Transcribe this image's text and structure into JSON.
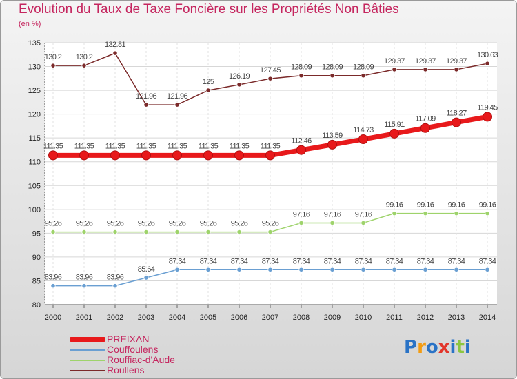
{
  "title": "Evolution du Taux de Taxe Foncière sur les Propriétés Non Bâties",
  "subtitle": "(en %)",
  "brand": {
    "text": "Proxiti",
    "letters": [
      "P",
      "r",
      "o",
      "x",
      "i",
      "t",
      "i"
    ],
    "colors": [
      "#2a73c6",
      "#f39c12",
      "#2a73c6",
      "#e2362b",
      "#2a73c6",
      "#8cc63f",
      "#2a73c6"
    ]
  },
  "chart_data": {
    "type": "line",
    "title": "Evolution du Taux de Taxe Foncière sur les Propriétés Non Bâties",
    "subtitle": "(en %)",
    "xlabel": "",
    "ylabel": "",
    "x": [
      "2000",
      "2001",
      "2002",
      "2003",
      "2004",
      "2005",
      "2006",
      "2007",
      "2008",
      "2009",
      "2010",
      "2011",
      "2012",
      "2013",
      "2014"
    ],
    "ylim": [
      80,
      135
    ],
    "yticks": [
      80,
      85,
      90,
      95,
      100,
      105,
      110,
      115,
      120,
      125,
      130,
      135
    ],
    "grid": true,
    "legend_position": "bottom-left",
    "series": [
      {
        "name": "PREIXAN",
        "color": "#e8191b",
        "emphasis": true,
        "values": [
          111.35,
          111.35,
          111.35,
          111.35,
          111.35,
          111.35,
          111.35,
          111.35,
          112.46,
          113.59,
          114.73,
          115.91,
          117.09,
          118.27,
          119.45
        ],
        "labels": [
          "111.35",
          "111.35",
          "111.35",
          "111.35",
          "111.35",
          "111.35",
          "111.35",
          "111.35",
          "112.46",
          "113.59",
          "114.73",
          "115.91",
          "117.09",
          "118.27",
          "119.45"
        ]
      },
      {
        "name": "Couffoulens",
        "color": "#6a9fd2",
        "emphasis": false,
        "values": [
          83.96,
          83.96,
          83.96,
          85.64,
          87.34,
          87.34,
          87.34,
          87.34,
          87.34,
          87.34,
          87.34,
          87.34,
          87.34,
          87.34,
          87.34
        ],
        "labels": [
          "83.96",
          "83.96",
          "83.96",
          "85.64",
          "87.34",
          "87.34",
          "87.34",
          "87.34",
          "87.34",
          "87.34",
          "87.34",
          "87.34",
          "87.34",
          "87.34",
          "87.34"
        ]
      },
      {
        "name": "Rouffiac-d'Aude",
        "color": "#9ed36b",
        "emphasis": false,
        "values": [
          95.26,
          95.26,
          95.26,
          95.26,
          95.26,
          95.26,
          95.26,
          95.26,
          97.16,
          97.16,
          97.16,
          99.16,
          99.16,
          99.16,
          99.16
        ],
        "labels": [
          "95.26",
          "95.26",
          "95.26",
          "95.26",
          "95.26",
          "95.26",
          "95.26",
          "95.26",
          "97.16",
          "97.16",
          "97.16",
          "99.16",
          "99.16",
          "99.16",
          "99.16"
        ]
      },
      {
        "name": "Roullens",
        "color": "#7b2a2a",
        "emphasis": false,
        "values": [
          130.2,
          130.2,
          132.81,
          121.96,
          121.96,
          125,
          126.19,
          127.45,
          128.09,
          128.09,
          128.09,
          129.37,
          129.37,
          129.37,
          130.63
        ],
        "labels": [
          "130.2",
          "130.2",
          "132.81",
          "121.96",
          "121.96",
          "125",
          "126.19",
          "127.45",
          "128.09",
          "128.09",
          "128.09",
          "129.37",
          "129.37",
          "129.37",
          "130.63"
        ]
      }
    ]
  }
}
